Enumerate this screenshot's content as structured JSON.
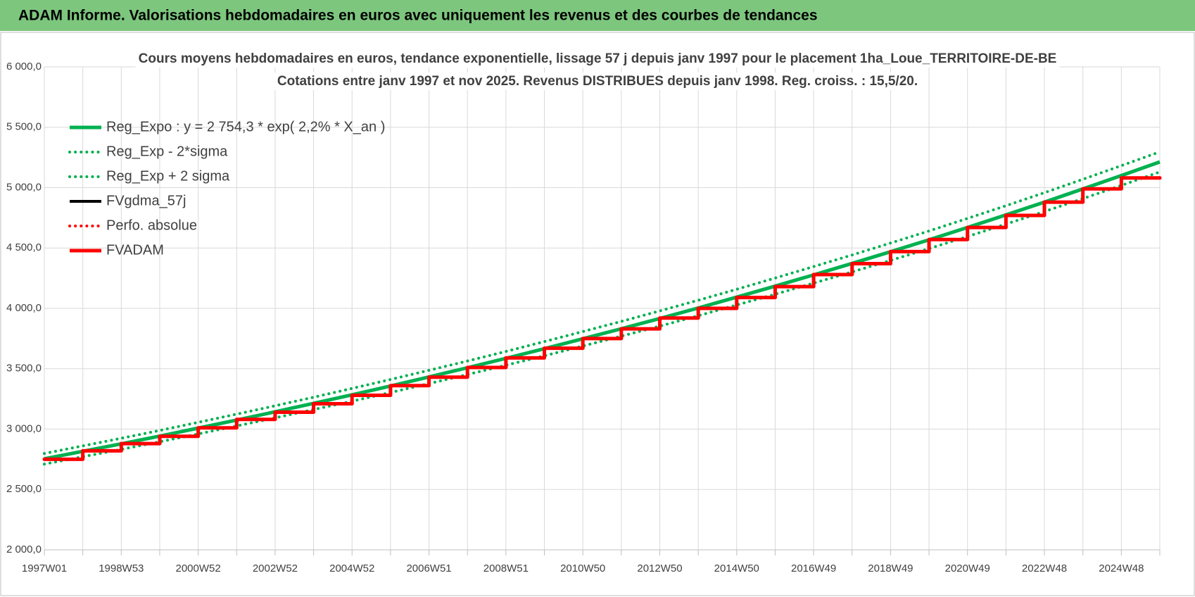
{
  "header": {
    "title": "ADAM Informe. Valorisations hebdomadaires en euros avec uniquement les revenus et des courbes de tendances"
  },
  "chart_data": {
    "type": "line",
    "title": "Cours moyens  hebdomadaires en euros, tendance exponentielle, lissage 57 j depuis janv 1997 pour le placement 1ha_Loue_TERRITOIRE-DE-BE",
    "subtitle": "Cotations entre janv 1997 et nov 2025. Revenus  DISTRIBUES depuis janv 1998.  Reg. croiss. : 15,5/20.",
    "categories": [
      "1997W01",
      null,
      "1998W53",
      null,
      "2000W52",
      null,
      "2002W52",
      null,
      "2004W52",
      null,
      "2006W51",
      null,
      "2008W51",
      null,
      "2010W50",
      null,
      "2012W50",
      null,
      "2014W50",
      null,
      "2016W49",
      null,
      "2018W49",
      null,
      "2020W49",
      null,
      "2022W48",
      null,
      "2024W48",
      null
    ],
    "ylim": [
      2000,
      6000
    ],
    "yticks": [
      {
        "value": 2000,
        "label": "2 000,0"
      },
      {
        "value": 2500,
        "label": "2 500,0"
      },
      {
        "value": 3000,
        "label": "3 000,0"
      },
      {
        "value": 3500,
        "label": "3 500,0"
      },
      {
        "value": 4000,
        "label": "4 000,0"
      },
      {
        "value": 4500,
        "label": "4 500,0"
      },
      {
        "value": 5000,
        "label": "5 000,0"
      },
      {
        "value": 5500,
        "label": "5 500,0"
      },
      {
        "value": 6000,
        "label": "6 000,0"
      }
    ],
    "grid": true,
    "legend": "upper left",
    "series": [
      {
        "name": "Reg_Expo : y = 2 754,3 * exp( 2,2% *  X_an )",
        "color": "#00b050",
        "dash": "solid",
        "step": false,
        "values": [
          2754,
          2816,
          2878,
          2942,
          3008,
          3075,
          3143,
          3213,
          3284,
          3357,
          3432,
          3508,
          3586,
          3666,
          3748,
          3831,
          3916,
          4003,
          4093,
          4184,
          4277,
          4372,
          4469,
          4568,
          4670,
          4774,
          4880,
          4989,
          5100,
          5213
        ]
      },
      {
        "name": "Reg_Exp - 2*sigma",
        "color": "#00b050",
        "dash": "dotted",
        "step": false,
        "values": [
          2710,
          2771,
          2832,
          2895,
          2960,
          3026,
          3093,
          3162,
          3231,
          3303,
          3377,
          3452,
          3529,
          3607,
          3688,
          3770,
          3853,
          3939,
          4028,
          4117,
          4209,
          4302,
          4397,
          4495,
          4595,
          4698,
          4802,
          4909,
          5018,
          5130
        ]
      },
      {
        "name": "Reg_Exp + 2 sigma",
        "color": "#00b050",
        "dash": "dotted",
        "step": false,
        "values": [
          2798,
          2861,
          2924,
          2989,
          3056,
          3124,
          3193,
          3264,
          3337,
          3411,
          3487,
          3564,
          3643,
          3725,
          3808,
          3892,
          3979,
          4067,
          4158,
          4251,
          4346,
          4442,
          4541,
          4641,
          4745,
          4850,
          4958,
          5069,
          5182,
          5296
        ]
      },
      {
        "name": "FVgdma_57j",
        "color": "#000000",
        "dash": "solid",
        "step": true,
        "values": [
          2750,
          2820,
          2880,
          2940,
          3010,
          3080,
          3140,
          3210,
          3280,
          3360,
          3430,
          3510,
          3590,
          3670,
          3750,
          3830,
          3920,
          4000,
          4090,
          4180,
          4280,
          4370,
          4470,
          4570,
          4670,
          4770,
          4880,
          4990,
          5080,
          5080
        ]
      },
      {
        "name": "Perfo. absolue",
        "color": "#ff0000",
        "dash": "dotted",
        "step": true,
        "values": [
          2750,
          2820,
          2880,
          2940,
          3010,
          3080,
          3140,
          3210,
          3280,
          3360,
          3430,
          3510,
          3590,
          3670,
          3750,
          3830,
          3920,
          4000,
          4090,
          4180,
          4280,
          4370,
          4470,
          4570,
          4670,
          4770,
          4880,
          4990,
          5080,
          5080
        ]
      },
      {
        "name": "FVADAM",
        "color": "#ff0000",
        "dash": "solid",
        "step": true,
        "values": [
          2750,
          2820,
          2880,
          2940,
          3010,
          3080,
          3140,
          3210,
          3280,
          3360,
          3430,
          3510,
          3590,
          3670,
          3750,
          3830,
          3920,
          4000,
          4090,
          4180,
          4280,
          4370,
          4470,
          4570,
          4670,
          4770,
          4880,
          4990,
          5080,
          5080
        ]
      }
    ]
  }
}
